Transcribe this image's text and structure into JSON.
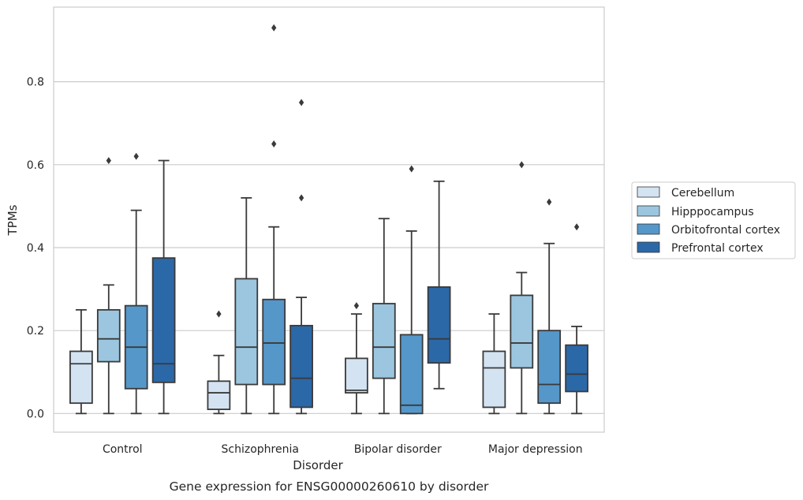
{
  "chart_data": {
    "type": "box",
    "title": "",
    "caption": "Gene expression for ENSG00000260610 by disorder",
    "xlabel": "Disorder",
    "ylabel": "TPMs",
    "ylim": [
      -0.045,
      0.98
    ],
    "yticks": [
      0.0,
      0.2,
      0.4,
      0.6,
      0.8
    ],
    "ytick_labels": [
      "0.0",
      "0.2",
      "0.4",
      "0.6",
      "0.8"
    ],
    "grid": "horizontal",
    "legend_position": "right",
    "categories": [
      "Control",
      "Schizophrenia",
      "Bipolar disorder",
      "Major depression"
    ],
    "series": [
      {
        "name": "Cerebellum",
        "color": "#d3e3f2",
        "boxes": [
          {
            "whisker_low": 0.0,
            "q1": 0.025,
            "median": 0.12,
            "q3": 0.15,
            "whisker_high": 0.25,
            "outliers": []
          },
          {
            "whisker_low": 0.0,
            "q1": 0.01,
            "median": 0.05,
            "q3": 0.078,
            "whisker_high": 0.14,
            "outliers": [
              0.24
            ]
          },
          {
            "whisker_low": 0.0,
            "q1": 0.05,
            "median": 0.056,
            "q3": 0.133,
            "whisker_high": 0.24,
            "outliers": [
              0.26
            ]
          },
          {
            "whisker_low": 0.0,
            "q1": 0.015,
            "median": 0.11,
            "q3": 0.15,
            "whisker_high": 0.24,
            "outliers": []
          }
        ]
      },
      {
        "name": "Hipppocampus",
        "color": "#9cc6df",
        "boxes": [
          {
            "whisker_low": 0.0,
            "q1": 0.125,
            "median": 0.18,
            "q3": 0.25,
            "whisker_high": 0.31,
            "outliers": [
              0.61
            ]
          },
          {
            "whisker_low": 0.0,
            "q1": 0.07,
            "median": 0.16,
            "q3": 0.325,
            "whisker_high": 0.52,
            "outliers": []
          },
          {
            "whisker_low": 0.0,
            "q1": 0.085,
            "median": 0.16,
            "q3": 0.265,
            "whisker_high": 0.47,
            "outliers": []
          },
          {
            "whisker_low": 0.0,
            "q1": 0.11,
            "median": 0.17,
            "q3": 0.285,
            "whisker_high": 0.34,
            "outliers": [
              0.6
            ]
          }
        ]
      },
      {
        "name": "Orbitofrontal cortex",
        "color": "#5597c9",
        "boxes": [
          {
            "whisker_low": 0.0,
            "q1": 0.06,
            "median": 0.16,
            "q3": 0.26,
            "whisker_high": 0.49,
            "outliers": [
              0.62
            ]
          },
          {
            "whisker_low": 0.0,
            "q1": 0.07,
            "median": 0.17,
            "q3": 0.275,
            "whisker_high": 0.45,
            "outliers": [
              0.65,
              0.93
            ]
          },
          {
            "whisker_low": 0.0,
            "q1": 0.0,
            "median": 0.02,
            "q3": 0.19,
            "whisker_high": 0.44,
            "outliers": [
              0.59
            ]
          },
          {
            "whisker_low": 0.0,
            "q1": 0.025,
            "median": 0.07,
            "q3": 0.2,
            "whisker_high": 0.41,
            "outliers": [
              0.51
            ]
          }
        ]
      },
      {
        "name": "Prefrontal cortex",
        "color": "#2b68a8",
        "boxes": [
          {
            "whisker_low": 0.0,
            "q1": 0.075,
            "median": 0.12,
            "q3": 0.375,
            "whisker_high": 0.61,
            "outliers": []
          },
          {
            "whisker_low": 0.0,
            "q1": 0.015,
            "median": 0.085,
            "q3": 0.212,
            "whisker_high": 0.28,
            "outliers": [
              0.52,
              0.75
            ]
          },
          {
            "whisker_low": 0.06,
            "q1": 0.122,
            "median": 0.18,
            "q3": 0.305,
            "whisker_high": 0.56,
            "outliers": []
          },
          {
            "whisker_low": 0.0,
            "q1": 0.053,
            "median": 0.095,
            "q3": 0.165,
            "whisker_high": 0.21,
            "outliers": [
              0.45
            ]
          }
        ]
      }
    ]
  }
}
